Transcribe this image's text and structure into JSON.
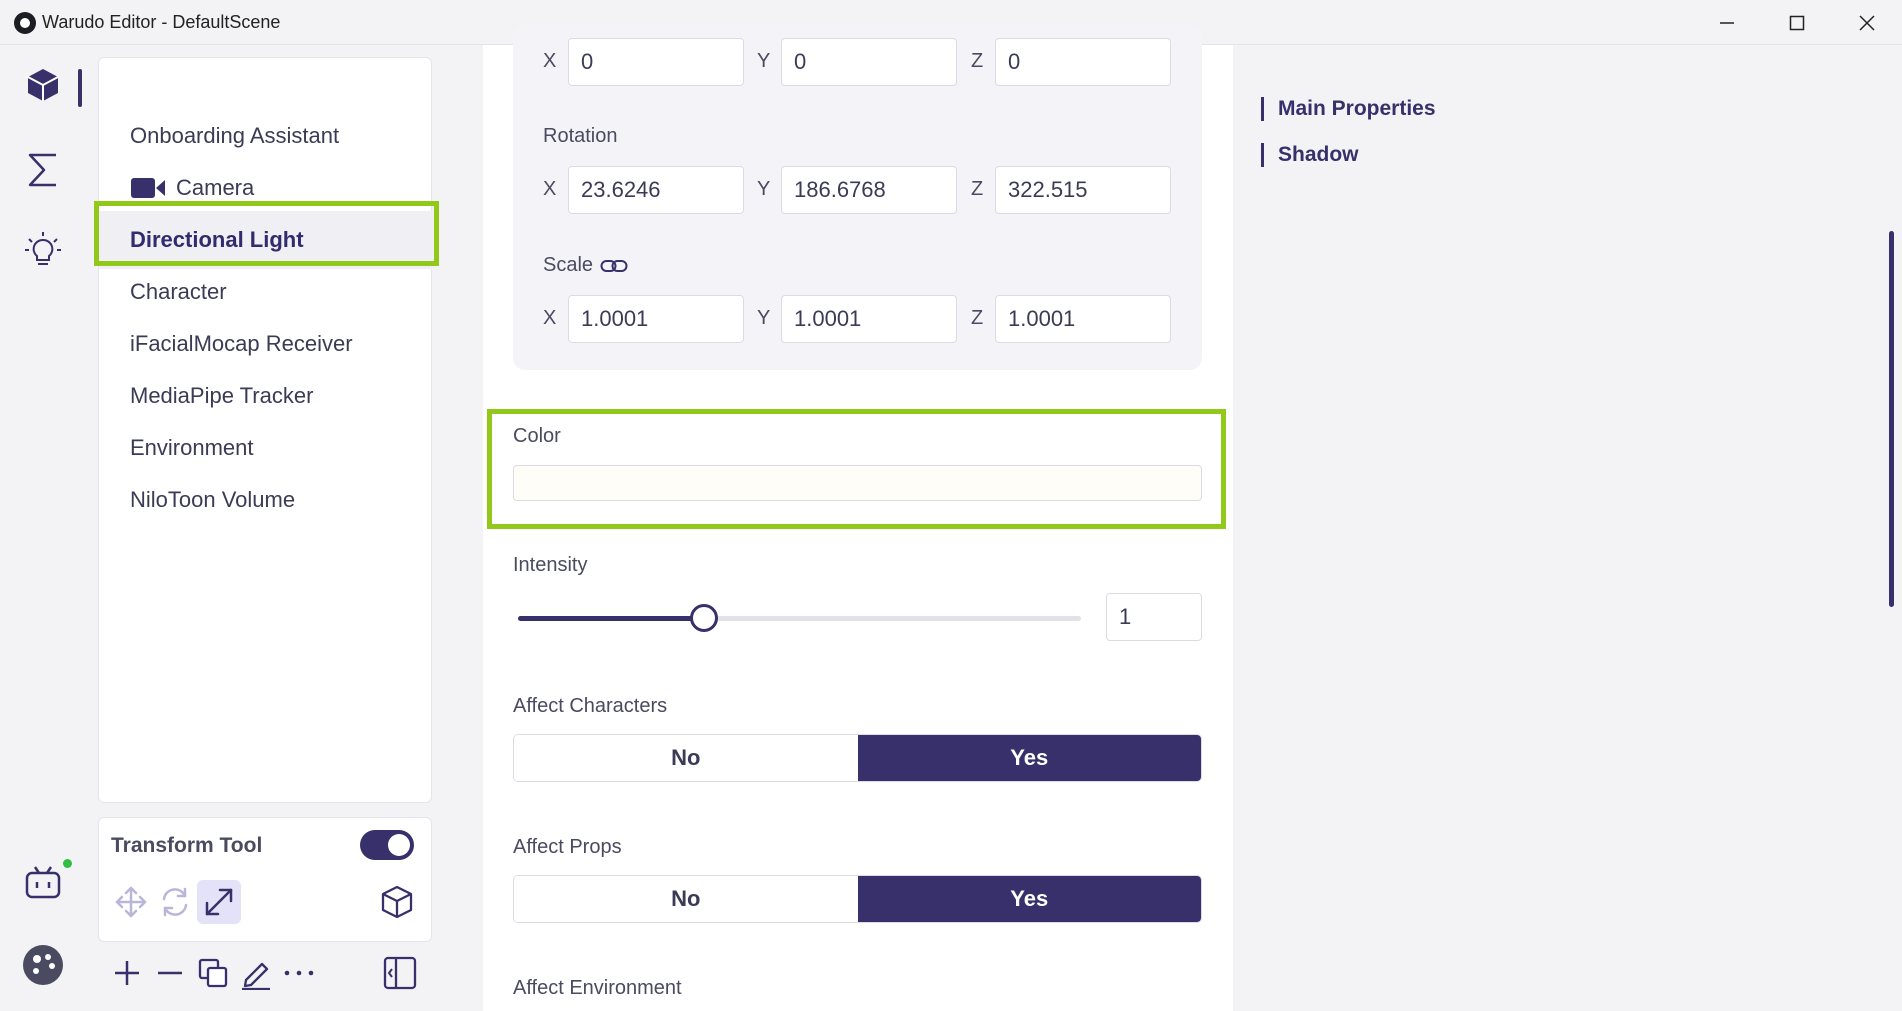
{
  "window": {
    "title": "Warudo Editor - DefaultScene"
  },
  "scene_list": {
    "items": [
      {
        "label": "Onboarding Assistant"
      },
      {
        "label": "Camera"
      },
      {
        "label": "Directional Light"
      },
      {
        "label": "Character"
      },
      {
        "label": "iFacialMocap Receiver"
      },
      {
        "label": "MediaPipe Tracker"
      },
      {
        "label": "Environment"
      },
      {
        "label": "NiloToon Volume"
      }
    ],
    "selected": "Directional Light"
  },
  "transform_tool": {
    "label": "Transform Tool",
    "enabled": true,
    "active_mode": "scale"
  },
  "properties": {
    "position": {
      "x": "0",
      "y": "0",
      "z": "0"
    },
    "rotation": {
      "label": "Rotation",
      "x": "23.6246",
      "y": "186.6768",
      "z": "322.515"
    },
    "scale": {
      "label": "Scale",
      "x": "1.0001",
      "y": "1.0001",
      "z": "1.0001"
    },
    "axes": {
      "x": "X",
      "y": "Y",
      "z": "Z"
    },
    "color": {
      "label": "Color",
      "value_hex": "#fffdf7"
    },
    "intensity": {
      "label": "Intensity",
      "value": "1",
      "slider_fraction": 0.33
    },
    "affect_characters": {
      "label": "Affect Characters",
      "no": "No",
      "yes": "Yes",
      "selected": "Yes"
    },
    "affect_props": {
      "label": "Affect Props",
      "no": "No",
      "yes": "Yes",
      "selected": "Yes"
    },
    "affect_environment": {
      "label": "Affect Environment"
    }
  },
  "toc": {
    "items": [
      {
        "label": "Main Properties"
      },
      {
        "label": "Shadow"
      }
    ]
  },
  "colors": {
    "accent": "#37306b",
    "highlight": "#92c81a",
    "online": "#2fbf45"
  }
}
